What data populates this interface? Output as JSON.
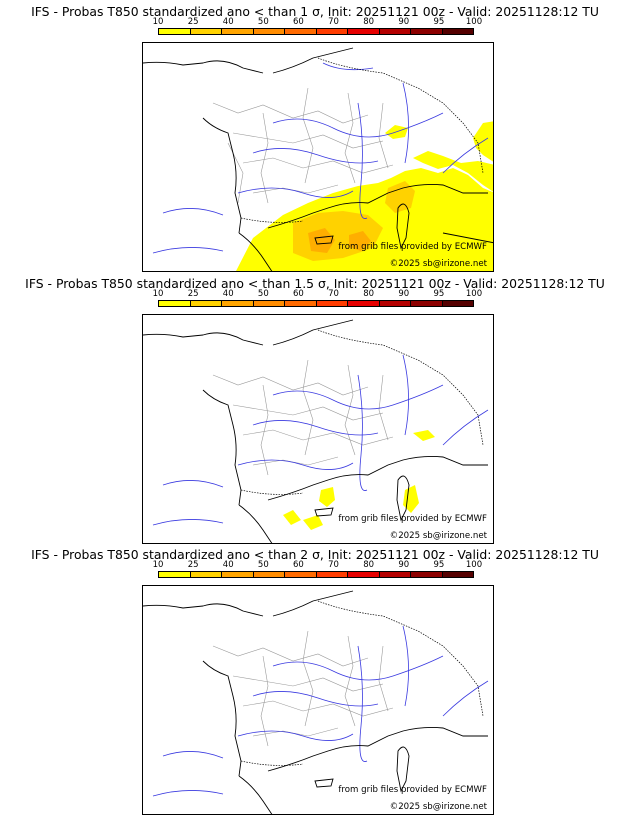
{
  "panels": [
    {
      "title": "IFS - Probas T850  standardized ano < than 1 σ, Init: 20251121 00z - Valid: 20251128:12 TU",
      "sigma": "1",
      "credit_data": "from grib files provided by ECMWF",
      "credit_copyright": "©2025 sb@irizone.net",
      "probability_coverage": "large yellow-orange area over the Mediterranean, Gulf of Lion, Corsica and the Alps"
    },
    {
      "title": "IFS - Probas T850  standardized ano < than 1.5 σ, Init: 20251121 00z - Valid: 20251128:12 TU",
      "sigma": "1.5",
      "credit_data": "from grib files provided by ECMWF",
      "credit_copyright": "©2025 sb@irizone.net",
      "probability_coverage": "small yellow patches near Balearics, Corsica and the south-east"
    },
    {
      "title": "IFS - Probas T850  standardized ano < than 2 σ, Init: 20251121 00z - Valid: 20251128:12 TU",
      "sigma": "2",
      "credit_data": "from grib files provided by ECMWF",
      "credit_copyright": "©2025 sb@irizone.net",
      "probability_coverage": "none"
    }
  ],
  "colorbar": {
    "labels": [
      "10",
      "25",
      "40",
      "50",
      "60",
      "70",
      "80",
      "90",
      "95",
      "100"
    ],
    "colors": [
      "#ffff00",
      "#ffd200",
      "#ffa500",
      "#ff8c00",
      "#ff6a00",
      "#ff3c00",
      "#e60000",
      "#b40000",
      "#8c0000",
      "#550000"
    ]
  },
  "map_colors": {
    "coast": "#000000",
    "rivers": "#3a3ae0",
    "borders": "#9a9a9a",
    "prob_low": "#ffff00",
    "prob_mid": "#ffd200",
    "prob_high": "#ffa500"
  }
}
